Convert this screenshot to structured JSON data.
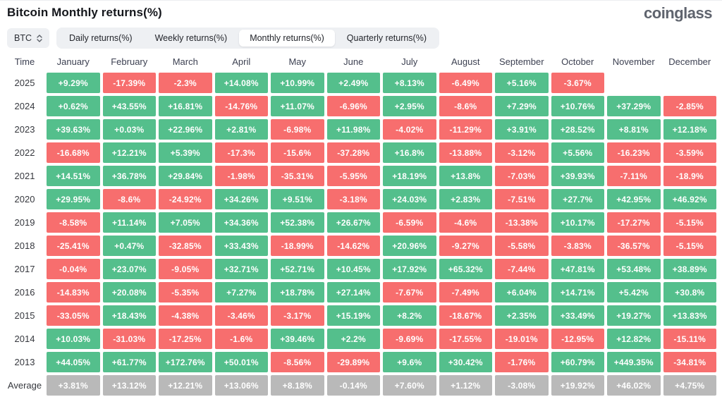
{
  "header": {
    "title": "Bitcoin Monthly returns(%)",
    "logo": "coinglass"
  },
  "controls": {
    "coin": "BTC",
    "coin_select_icon": "sort-arrows-icon",
    "tabs": [
      {
        "label": "Daily returns(%)",
        "active": false
      },
      {
        "label": "Weekly returns(%)",
        "active": false
      },
      {
        "label": "Monthly returns(%)",
        "active": true
      },
      {
        "label": "Quarterly returns(%)",
        "active": false
      }
    ]
  },
  "colors": {
    "positive": "#54bf8c",
    "negative": "#f76e6e",
    "average": "#b9b9b9"
  },
  "table": {
    "time_header": "Time",
    "months": [
      "January",
      "February",
      "March",
      "April",
      "May",
      "June",
      "July",
      "August",
      "September",
      "October",
      "November",
      "December"
    ],
    "rows": [
      {
        "time": "2025",
        "is_average": false,
        "values": [
          "+9.29%",
          "-17.39%",
          "-2.3%",
          "+14.08%",
          "+10.99%",
          "+2.49%",
          "+8.13%",
          "-6.49%",
          "+5.16%",
          "-3.67%",
          null,
          null
        ]
      },
      {
        "time": "2024",
        "is_average": false,
        "values": [
          "+0.62%",
          "+43.55%",
          "+16.81%",
          "-14.76%",
          "+11.07%",
          "-6.96%",
          "+2.95%",
          "-8.6%",
          "+7.29%",
          "+10.76%",
          "+37.29%",
          "-2.85%"
        ]
      },
      {
        "time": "2023",
        "is_average": false,
        "values": [
          "+39.63%",
          "+0.03%",
          "+22.96%",
          "+2.81%",
          "-6.98%",
          "+11.98%",
          "-4.02%",
          "-11.29%",
          "+3.91%",
          "+28.52%",
          "+8.81%",
          "+12.18%"
        ]
      },
      {
        "time": "2022",
        "is_average": false,
        "values": [
          "-16.68%",
          "+12.21%",
          "+5.39%",
          "-17.3%",
          "-15.6%",
          "-37.28%",
          "+16.8%",
          "-13.88%",
          "-3.12%",
          "+5.56%",
          "-16.23%",
          "-3.59%"
        ]
      },
      {
        "time": "2021",
        "is_average": false,
        "values": [
          "+14.51%",
          "+36.78%",
          "+29.84%",
          "-1.98%",
          "-35.31%",
          "-5.95%",
          "+18.19%",
          "+13.8%",
          "-7.03%",
          "+39.93%",
          "-7.11%",
          "-18.9%"
        ]
      },
      {
        "time": "2020",
        "is_average": false,
        "values": [
          "+29.95%",
          "-8.6%",
          "-24.92%",
          "+34.26%",
          "+9.51%",
          "-3.18%",
          "+24.03%",
          "+2.83%",
          "-7.51%",
          "+27.7%",
          "+42.95%",
          "+46.92%"
        ]
      },
      {
        "time": "2019",
        "is_average": false,
        "values": [
          "-8.58%",
          "+11.14%",
          "+7.05%",
          "+34.36%",
          "+52.38%",
          "+26.67%",
          "-6.59%",
          "-4.6%",
          "-13.38%",
          "+10.17%",
          "-17.27%",
          "-5.15%"
        ]
      },
      {
        "time": "2018",
        "is_average": false,
        "values": [
          "-25.41%",
          "+0.47%",
          "-32.85%",
          "+33.43%",
          "-18.99%",
          "-14.62%",
          "+20.96%",
          "-9.27%",
          "-5.58%",
          "-3.83%",
          "-36.57%",
          "-5.15%"
        ]
      },
      {
        "time": "2017",
        "is_average": false,
        "values": [
          "-0.04%",
          "+23.07%",
          "-9.05%",
          "+32.71%",
          "+52.71%",
          "+10.45%",
          "+17.92%",
          "+65.32%",
          "-7.44%",
          "+47.81%",
          "+53.48%",
          "+38.89%"
        ]
      },
      {
        "time": "2016",
        "is_average": false,
        "values": [
          "-14.83%",
          "+20.08%",
          "-5.35%",
          "+7.27%",
          "+18.78%",
          "+27.14%",
          "-7.67%",
          "-7.49%",
          "+6.04%",
          "+14.71%",
          "+5.42%",
          "+30.8%"
        ]
      },
      {
        "time": "2015",
        "is_average": false,
        "values": [
          "-33.05%",
          "+18.43%",
          "-4.38%",
          "-3.46%",
          "-3.17%",
          "+15.19%",
          "+8.2%",
          "-18.67%",
          "+2.35%",
          "+33.49%",
          "+19.27%",
          "+13.83%"
        ]
      },
      {
        "time": "2014",
        "is_average": false,
        "values": [
          "+10.03%",
          "-31.03%",
          "-17.25%",
          "-1.6%",
          "+39.46%",
          "+2.2%",
          "-9.69%",
          "-17.55%",
          "-19.01%",
          "-12.95%",
          "+12.82%",
          "-15.11%"
        ]
      },
      {
        "time": "2013",
        "is_average": false,
        "values": [
          "+44.05%",
          "+61.77%",
          "+172.76%",
          "+50.01%",
          "-8.56%",
          "-29.89%",
          "+9.6%",
          "+30.42%",
          "-1.76%",
          "+60.79%",
          "+449.35%",
          "-34.81%"
        ]
      },
      {
        "time": "Average",
        "is_average": true,
        "values": [
          "+3.81%",
          "+13.12%",
          "+12.21%",
          "+13.06%",
          "+8.18%",
          "-0.14%",
          "+7.60%",
          "+1.12%",
          "-3.08%",
          "+19.92%",
          "+46.02%",
          "+4.75%"
        ]
      }
    ]
  }
}
